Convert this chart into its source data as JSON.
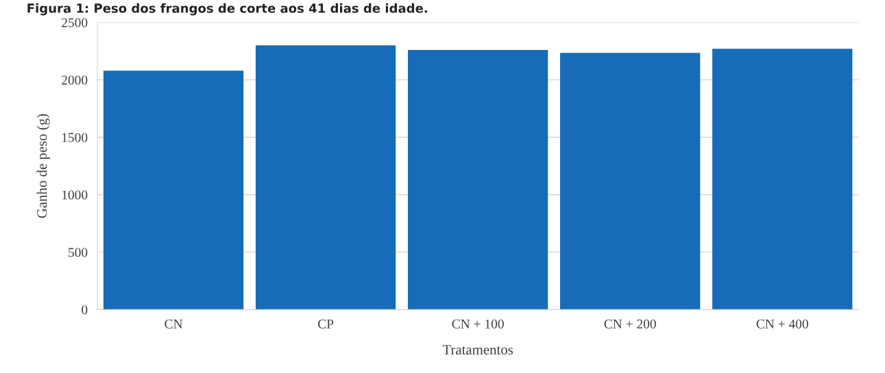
{
  "chart_data": {
    "type": "bar",
    "title": "Figura 1: Peso dos frangos de corte aos 41 dias de idade.",
    "xlabel": "Tratamentos",
    "ylabel": "Ganho de peso (g)",
    "categories": [
      "CN",
      "CP",
      "CN + 100",
      "CN + 200",
      "CN + 400"
    ],
    "values": [
      2080,
      2300,
      2260,
      2235,
      2270
    ],
    "color": "#166cb7",
    "ylim": [
      0,
      2500
    ],
    "yticks": [
      0,
      500,
      1000,
      1500,
      2000,
      2500
    ],
    "grid": "y",
    "legend": false
  }
}
